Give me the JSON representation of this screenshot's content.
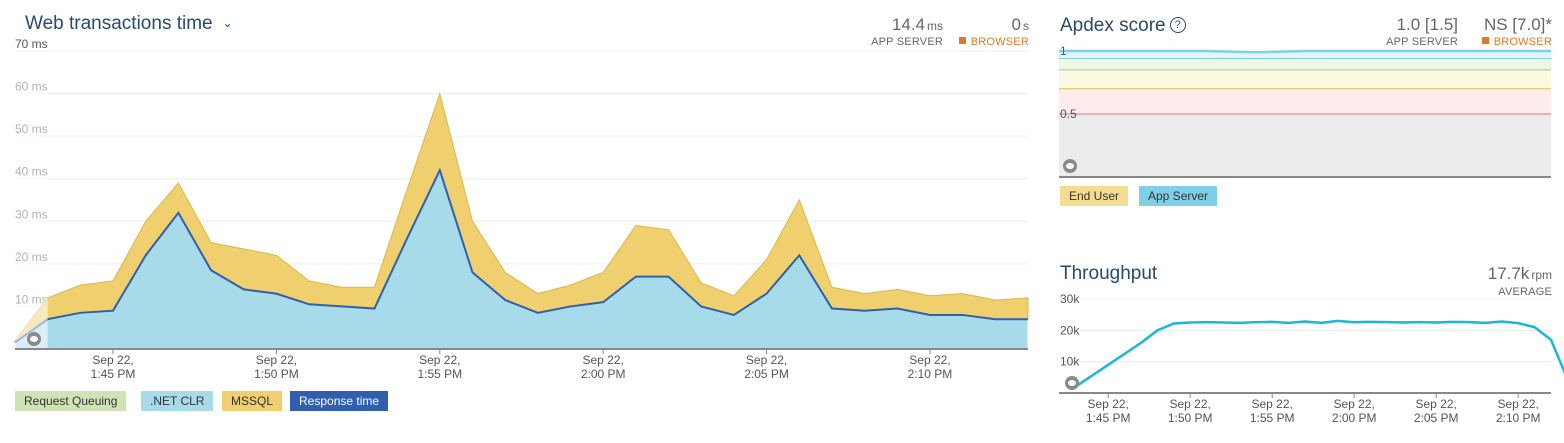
{
  "web": {
    "title": "Web transactions time",
    "app_value": "14.4",
    "app_unit": "ms",
    "app_label": "APP SERVER",
    "browser_value": "0",
    "browser_unit": "s",
    "browser_label": "BROWSER",
    "legend": [
      {
        "label": "Request Queuing",
        "color": "#cfe3b4"
      },
      {
        "label": ".NET CLR",
        "color": "#a8dbe9"
      },
      {
        "label": "MSSQL",
        "color": "#f0cf6e"
      },
      {
        "label": "Response time",
        "color": "#2f5fad"
      }
    ]
  },
  "apdex": {
    "title": "Apdex score",
    "app_value": "1.0 [1.5]",
    "app_label": "APP SERVER",
    "browser_value": "NS [7.0]*",
    "browser_label": "BROWSER",
    "legend": [
      {
        "label": "End User",
        "color": "#f4dc91"
      },
      {
        "label": "App Server",
        "color": "#7fd0e6"
      }
    ]
  },
  "throughput": {
    "title": "Throughput",
    "value": "17.7k",
    "unit": "rpm",
    "label": "AVERAGE"
  },
  "chart_data": [
    {
      "type": "area",
      "title": "Web transactions time",
      "ylim": [
        0,
        70
      ],
      "yticks": [
        "10 ms",
        "20 ms",
        "30 ms",
        "40 ms",
        "50 ms",
        "60 ms",
        "70 ms"
      ],
      "ytick_values": [
        10,
        20,
        30,
        40,
        50,
        60,
        70
      ],
      "xlim": [
        0,
        31
      ],
      "xticks": [
        {
          "pos": 3,
          "date": "Sep 22,",
          "time": "1:45 PM"
        },
        {
          "pos": 8,
          "date": "Sep 22,",
          "time": "1:50 PM"
        },
        {
          "pos": 13,
          "date": "Sep 22,",
          "time": "1:55 PM"
        },
        {
          "pos": 18,
          "date": "Sep 22,",
          "time": "2:00 PM"
        },
        {
          "pos": 23,
          "date": "Sep 22,",
          "time": "2:05 PM"
        },
        {
          "pos": 28,
          "date": "Sep 22,",
          "time": "2:10 PM"
        }
      ],
      "x": [
        0,
        1,
        2,
        3,
        4,
        5,
        6,
        7,
        8,
        9,
        10,
        11,
        12,
        13,
        14,
        15,
        16,
        17,
        18,
        19,
        20,
        21,
        22,
        23,
        24,
        25,
        26,
        27,
        28,
        29,
        30,
        31
      ],
      "series": [
        {
          "name": ".NET CLR",
          "color": "#a8dbe9",
          "values": [
            1.5,
            7,
            8.5,
            9,
            22,
            32,
            18.5,
            14,
            13,
            10.5,
            10,
            9.5,
            26,
            42,
            18,
            11.5,
            8.5,
            10,
            11,
            17,
            17,
            10,
            8,
            13,
            22,
            9.5,
            9,
            9.5,
            8,
            8,
            7,
            7
          ]
        },
        {
          "name": "MSSQL",
          "color": "#f0cf6e",
          "values": [
            2,
            12,
            15,
            16,
            30,
            39,
            25,
            23.5,
            22,
            16,
            14.5,
            14.5,
            37.5,
            60,
            30,
            18,
            13,
            15,
            18,
            29,
            28,
            15.5,
            12.5,
            21,
            35,
            14.5,
            13,
            14,
            12.5,
            13,
            11.5,
            12
          ]
        },
        {
          "name": "Response time",
          "color": "#2f5fad",
          "values": [
            1.5,
            7,
            8.5,
            9,
            22,
            32,
            18.5,
            14,
            13,
            10.5,
            10,
            9.5,
            26,
            42,
            18,
            11.5,
            8.5,
            10,
            11,
            17,
            17,
            10,
            8,
            13,
            22,
            9.5,
            9,
            9.5,
            8,
            8,
            7,
            7
          ]
        }
      ]
    },
    {
      "type": "line",
      "title": "Apdex score",
      "ylim": [
        0,
        1
      ],
      "yticks": [
        "0.5",
        "1"
      ],
      "ytick_values": [
        0.5,
        1
      ],
      "thresholds": [
        {
          "value": 0.94,
          "color": "#7fd0e6"
        },
        {
          "value": 0.85,
          "color": "#9ccf6a"
        },
        {
          "value": 0.7,
          "color": "#d9c24a"
        },
        {
          "value": 0.5,
          "color": "#d97a7a"
        }
      ],
      "series": [
        {
          "name": "App Server",
          "color": "#7fd0e6",
          "x": [
            0,
            0.3,
            0.4,
            0.5,
            0.6,
            1
          ],
          "values": [
            1,
            1,
            0.99,
            1,
            1,
            1
          ]
        }
      ]
    },
    {
      "type": "line",
      "title": "Throughput",
      "ylim": [
        0,
        30000
      ],
      "yticks": [
        "10k",
        "20k",
        "30k"
      ],
      "ytick_values": [
        10000,
        20000,
        30000
      ],
      "xlim": [
        0,
        30
      ],
      "xticks": [
        {
          "pos": 3,
          "date": "Sep 22,",
          "time": "1:45 PM"
        },
        {
          "pos": 8,
          "date": "Sep 22,",
          "time": "1:50 PM"
        },
        {
          "pos": 13,
          "date": "Sep 22,",
          "time": "1:55 PM"
        },
        {
          "pos": 18,
          "date": "Sep 22,",
          "time": "2:00 PM"
        },
        {
          "pos": 23,
          "date": "Sep 22,",
          "time": "2:05 PM"
        },
        {
          "pos": 28,
          "date": "Sep 22,",
          "time": "2:10 PM"
        }
      ],
      "series": [
        {
          "name": "Throughput",
          "color": "#1db6d6",
          "x": [
            0,
            2,
            4,
            5,
            6,
            7,
            8,
            9,
            10,
            11,
            12,
            13,
            14,
            15,
            16,
            17,
            18,
            19,
            20,
            21,
            22,
            23,
            24,
            25,
            26,
            27,
            28,
            29,
            30
          ],
          "values": [
            2000,
            9000,
            16000,
            20000,
            22200,
            22500,
            22600,
            22500,
            22400,
            22600,
            22700,
            22400,
            22800,
            22400,
            23000,
            22600,
            22700,
            22600,
            22500,
            22600,
            22500,
            22700,
            22600,
            22400,
            22800,
            22300,
            21000,
            17000,
            4500
          ]
        }
      ]
    }
  ]
}
